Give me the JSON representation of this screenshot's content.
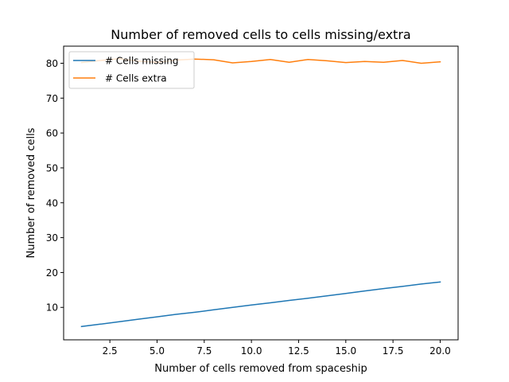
{
  "chart_data": {
    "type": "line",
    "title": "Number of removed cells to cells missing/extra",
    "xlabel": "Number of cells removed from spaceship",
    "ylabel": "Number of removed cells",
    "xlim": [
      0.05,
      20.95
    ],
    "ylim": [
      0.7,
      84.9
    ],
    "xticks": [
      2.5,
      5.0,
      7.5,
      10.0,
      12.5,
      15.0,
      17.5,
      20.0
    ],
    "xtick_labels": [
      "2.5",
      "5.0",
      "7.5",
      "10.0",
      "12.5",
      "15.0",
      "17.5",
      "20.0"
    ],
    "yticks": [
      10,
      20,
      30,
      40,
      50,
      60,
      70,
      80
    ],
    "ytick_labels": [
      "10",
      "20",
      "30",
      "40",
      "50",
      "60",
      "70",
      "80"
    ],
    "grid": false,
    "legend_position": "upper-left",
    "x": [
      1,
      2,
      3,
      4,
      5,
      6,
      7,
      8,
      9,
      10,
      11,
      12,
      13,
      14,
      15,
      16,
      17,
      18,
      19,
      20
    ],
    "series": [
      {
        "name": "# Cells missing",
        "color": "#1f77b4",
        "values": [
          4.5,
          5.2,
          5.9,
          6.6,
          7.3,
          8.0,
          8.6,
          9.3,
          10.0,
          10.7,
          11.3,
          12.0,
          12.6,
          13.3,
          14.0,
          14.7,
          15.4,
          16.0,
          16.7,
          17.3
        ]
      },
      {
        "name": "# Cells extra",
        "color": "#ff7f0e",
        "values": [
          80.2,
          80.8,
          81.3,
          80.6,
          80.3,
          80.9,
          81.2,
          81.0,
          80.1,
          80.5,
          81.1,
          80.3,
          81.1,
          80.7,
          80.2,
          80.5,
          80.3,
          80.8,
          80.0,
          80.4
        ]
      }
    ]
  }
}
